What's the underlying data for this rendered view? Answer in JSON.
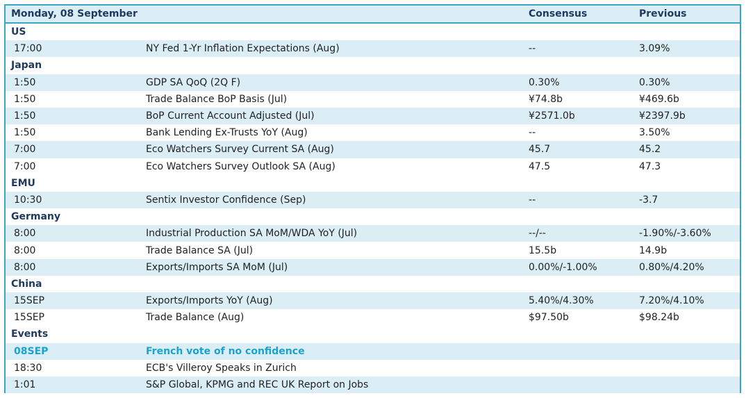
{
  "header": {
    "date": "Monday, 08 September",
    "consensus": "Consensus",
    "previous": "Previous"
  },
  "rows": [
    {
      "type": "section",
      "label": "US"
    },
    {
      "type": "data",
      "time": "17:00",
      "event": "NY Fed 1-Yr Inflation Expectations (Aug)",
      "consensus": "--",
      "previous": "3.09%"
    },
    {
      "type": "section",
      "label": "Japan"
    },
    {
      "type": "data",
      "time": "1:50",
      "event": "GDP SA QoQ (2Q F)",
      "consensus": "0.30%",
      "previous": "0.30%"
    },
    {
      "type": "data",
      "time": "1:50",
      "event": "Trade Balance BoP Basis (Jul)",
      "consensus": "¥74.8b",
      "previous": "¥469.6b"
    },
    {
      "type": "data",
      "time": "1:50",
      "event": "BoP Current Account Adjusted (Jul)",
      "consensus": "¥2571.0b",
      "previous": "¥2397.9b"
    },
    {
      "type": "data",
      "time": "1:50",
      "event": "Bank Lending Ex-Trusts YoY (Aug)",
      "consensus": "--",
      "previous": "3.50%"
    },
    {
      "type": "data",
      "time": "7:00",
      "event": "Eco Watchers Survey Current SA (Aug)",
      "consensus": "45.7",
      "previous": "45.2"
    },
    {
      "type": "data",
      "time": "7:00",
      "event": "Eco Watchers Survey Outlook SA (Aug)",
      "consensus": "47.5",
      "previous": "47.3"
    },
    {
      "type": "section",
      "label": "EMU"
    },
    {
      "type": "data",
      "time": "10:30",
      "event": "Sentix Investor Confidence (Sep)",
      "consensus": "--",
      "previous": "-3.7"
    },
    {
      "type": "section",
      "label": "Germany"
    },
    {
      "type": "data",
      "time": "8:00",
      "event": "Industrial Production SA MoM/WDA YoY (Jul)",
      "consensus": "--/--",
      "previous": "-1.90%/-3.60%"
    },
    {
      "type": "data",
      "time": "8:00",
      "event": "Trade Balance SA (Jul)",
      "consensus": "15.5b",
      "previous": "14.9b"
    },
    {
      "type": "data",
      "time": "8:00",
      "event": "Exports/Imports SA MoM (Jul)",
      "consensus": "0.00%/-1.00%",
      "previous": "0.80%/4.20%"
    },
    {
      "type": "section",
      "label": "China"
    },
    {
      "type": "data",
      "time": "15SEP",
      "event": "Exports/Imports YoY (Aug)",
      "consensus": "5.40%/4.30%",
      "previous": "7.20%/4.10%"
    },
    {
      "type": "data",
      "time": "15SEP",
      "event": "Trade Balance (Aug)",
      "consensus": "$97.50b",
      "previous": "$98.24b"
    },
    {
      "type": "section",
      "label": "Events"
    },
    {
      "type": "data",
      "time": "08SEP",
      "event": "French vote of no confidence",
      "consensus": "",
      "previous": "",
      "highlight": true
    },
    {
      "type": "data",
      "time": "18:30",
      "event": "ECB's Villeroy Speaks in Zurich",
      "consensus": "",
      "previous": ""
    },
    {
      "type": "data",
      "time": "1:01",
      "event": "S&P Global, KPMG and REC UK Report on Jobs",
      "consensus": "",
      "previous": ""
    }
  ],
  "colors": {
    "accent": "#3aa6c4",
    "shade": "#dbeef6",
    "highlight_text": "#1aa3cf",
    "header_text": "#1f3a5f"
  }
}
